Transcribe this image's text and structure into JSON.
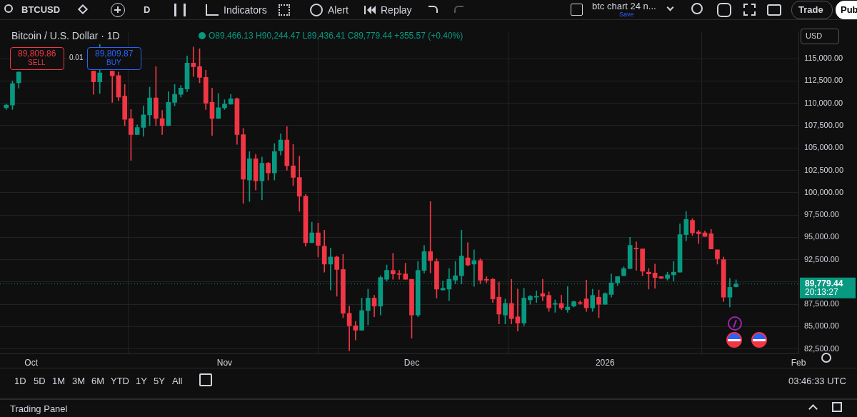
{
  "chart_data": {
    "type": "candlestick",
    "title": "Bitcoin / U.S. Dollar · 1D",
    "subtitle": "O89,466.13 H90,244.47 L89,436.41 C89,779.44 +355.57 (+0.40%)",
    "x": [
      "2025-09-27",
      "2025-09-28",
      "2025-09-29",
      "2025-10-11",
      "2025-10-12",
      "2025-10-14",
      "2025-10-15",
      "2025-10-16",
      "2025-10-17",
      "2025-10-18",
      "2025-10-19",
      "2025-10-20",
      "2025-10-21",
      "2025-10-22",
      "2025-10-23",
      "2025-10-24",
      "2025-10-25",
      "2025-10-26",
      "2025-10-27",
      "2025-10-28",
      "2025-10-29",
      "2025-10-30",
      "2025-10-31",
      "2025-11-01",
      "2025-11-02",
      "2025-11-03",
      "2025-11-04",
      "2025-11-05",
      "2025-11-06",
      "2025-11-07",
      "2025-11-08",
      "2025-11-09",
      "2025-11-10",
      "2025-11-11",
      "2025-11-12",
      "2025-11-13",
      "2025-11-14",
      "2025-11-15",
      "2025-11-16",
      "2025-11-17",
      "2025-11-18",
      "2025-11-19",
      "2025-11-20",
      "2025-11-21",
      "2025-11-22",
      "2025-11-23",
      "2025-11-24",
      "2025-11-25",
      "2025-11-26",
      "2025-11-27",
      "2025-11-28",
      "2025-11-29",
      "2025-11-30",
      "2025-12-01",
      "2025-12-02",
      "2025-12-03",
      "2025-12-04",
      "2025-12-05",
      "2025-12-06",
      "2025-12-07",
      "2025-12-08",
      "2025-12-09",
      "2025-12-10",
      "2025-12-11",
      "2025-12-12",
      "2025-12-13",
      "2025-12-14",
      "2025-12-15",
      "2025-12-16",
      "2025-12-17",
      "2025-12-18",
      "2025-12-19",
      "2025-12-20",
      "2025-12-21",
      "2025-12-22",
      "2025-12-23",
      "2025-12-24",
      "2025-12-25",
      "2025-12-26",
      "2025-12-27",
      "2025-12-28",
      "2025-12-29",
      "2025-12-30",
      "2025-12-31",
      "2026-01-01",
      "2026-01-02",
      "2026-01-03",
      "2026-01-04",
      "2026-01-05",
      "2026-01-06",
      "2026-01-07",
      "2026-01-08",
      "2026-01-09",
      "2026-01-10",
      "2026-01-11",
      "2026-01-12",
      "2026-01-13",
      "2026-01-14",
      "2026-01-15",
      "2026-01-16",
      "2026-01-17",
      "2026-01-18",
      "2026-01-19",
      "2026-01-20",
      "2026-01-21",
      "2026-01-22"
    ],
    "ohlc": [
      [
        109500,
        109900,
        109300,
        109800
      ],
      [
        109800,
        112500,
        109300,
        112200
      ],
      [
        112300,
        113500,
        111700,
        113500
      ],
      [
        113600,
        113600,
        111000,
        112400
      ],
      [
        112400,
        116600,
        111100,
        113400
      ],
      [
        113600,
        113600,
        110100,
        113100
      ],
      [
        113100,
        113500,
        110300,
        110700
      ],
      [
        110800,
        112100,
        107500,
        108200
      ],
      [
        108300,
        109300,
        103600,
        106500
      ],
      [
        106500,
        107600,
        106500,
        107300
      ],
      [
        107300,
        109700,
        106300,
        108700
      ],
      [
        108700,
        111800,
        107500,
        110600
      ],
      [
        110600,
        114100,
        107500,
        108300
      ],
      [
        108300,
        109200,
        106500,
        107500
      ],
      [
        107500,
        111300,
        107500,
        110100
      ],
      [
        110100,
        112100,
        109700,
        111000
      ],
      [
        111000,
        112000,
        110700,
        111700
      ],
      [
        111600,
        115300,
        111300,
        114500
      ],
      [
        114500,
        116300,
        113000,
        114100
      ],
      [
        114100,
        116100,
        112300,
        112900
      ],
      [
        112900,
        113700,
        109300,
        110000
      ],
      [
        110100,
        111700,
        106400,
        108300
      ],
      [
        108300,
        111100,
        108300,
        109500
      ],
      [
        109500,
        110400,
        109300,
        109900
      ],
      [
        109900,
        111000,
        109900,
        110500
      ],
      [
        110500,
        110600,
        105400,
        106500
      ],
      [
        106500,
        107200,
        98800,
        101500
      ],
      [
        101400,
        104600,
        99000,
        103800
      ],
      [
        103800,
        104300,
        100300,
        101300
      ],
      [
        101300,
        104000,
        99200,
        103300
      ],
      [
        103300,
        103400,
        101400,
        102200
      ],
      [
        102200,
        105500,
        101400,
        104600
      ],
      [
        104700,
        106600,
        104200,
        105900
      ],
      [
        105900,
        107400,
        102500,
        103000
      ],
      [
        103000,
        105400,
        100800,
        101700
      ],
      [
        101700,
        104100,
        97900,
        99600
      ],
      [
        99600,
        99800,
        94000,
        94400
      ],
      [
        94400,
        96700,
        94400,
        95500
      ],
      [
        95500,
        96600,
        92800,
        94100
      ],
      [
        94000,
        95800,
        91100,
        92000
      ],
      [
        92000,
        93800,
        89100,
        92800
      ],
      [
        92800,
        92900,
        88400,
        91400
      ],
      [
        91400,
        93100,
        86000,
        86500
      ],
      [
        86500,
        87300,
        82300,
        85100
      ],
      [
        85100,
        85600,
        83500,
        84600
      ],
      [
        84600,
        88200,
        84600,
        86800
      ],
      [
        86800,
        89200,
        85200,
        88200
      ],
      [
        88200,
        88500,
        86100,
        87300
      ],
      [
        87300,
        90700,
        86300,
        90500
      ],
      [
        90300,
        91900,
        90100,
        91300
      ],
      [
        91300,
        93200,
        90300,
        90900
      ],
      [
        90900,
        91300,
        90300,
        90850
      ],
      [
        90900,
        92100,
        90300,
        90300
      ],
      [
        90300,
        90300,
        83700,
        86300
      ],
      [
        86300,
        92300,
        86100,
        91300
      ],
      [
        91300,
        94100,
        91000,
        93400
      ],
      [
        93400,
        99000,
        91000,
        92400
      ],
      [
        92300,
        92600,
        88200,
        89200
      ],
      [
        89100,
        90100,
        89100,
        89300
      ],
      [
        89200,
        91500,
        87900,
        90300
      ],
      [
        90200,
        92300,
        89800,
        90700
      ],
      [
        90700,
        95800,
        89800,
        92900
      ],
      [
        92700,
        94400,
        91800,
        91900
      ],
      [
        92000,
        93600,
        89500,
        92400
      ],
      [
        92400,
        92600,
        89800,
        90200
      ],
      [
        90300,
        90600,
        89900,
        90200
      ],
      [
        90300,
        90400,
        87700,
        88100
      ],
      [
        88300,
        90000,
        85300,
        86400
      ],
      [
        86300,
        88100,
        85300,
        87600
      ],
      [
        87600,
        90300,
        85300,
        85900
      ],
      [
        86100,
        89200,
        84500,
        85400
      ],
      [
        85400,
        89300,
        85100,
        88200
      ],
      [
        88000,
        88500,
        87500,
        88400
      ],
      [
        88300,
        89000,
        87700,
        88400
      ],
      [
        88700,
        90300,
        87900,
        88400
      ],
      [
        88500,
        88900,
        86700,
        87100
      ],
      [
        87500,
        88000,
        86600,
        87600
      ],
      [
        87600,
        88500,
        86900,
        87100
      ],
      [
        86900,
        89500,
        86600,
        87200
      ],
      [
        87300,
        87900,
        87200,
        87800
      ],
      [
        87700,
        87900,
        87500,
        87600
      ],
      [
        88100,
        90200,
        86700,
        87100
      ],
      [
        87100,
        89200,
        86700,
        88500
      ],
      [
        88300,
        89100,
        86000,
        87500
      ],
      [
        87500,
        88800,
        87500,
        88700
      ],
      [
        88600,
        90900,
        88300,
        89900
      ],
      [
        89900,
        90600,
        89600,
        90600
      ],
      [
        90700,
        91700,
        90700,
        91500
      ],
      [
        91500,
        95000,
        91500,
        94100
      ],
      [
        93800,
        94500,
        91300,
        93700
      ],
      [
        93700,
        93700,
        90700,
        91200
      ],
      [
        91100,
        91500,
        89200,
        90900
      ],
      [
        91000,
        92000,
        89300,
        90500
      ],
      [
        90600,
        90600,
        90400,
        90400
      ],
      [
        90400,
        91100,
        90200,
        90800
      ],
      [
        90800,
        92300,
        90100,
        91100
      ],
      [
        91100,
        96500,
        91100,
        95300
      ],
      [
        95300,
        97900,
        94600,
        97000
      ],
      [
        96900,
        97100,
        95200,
        95500
      ],
      [
        95600,
        95800,
        94300,
        95400
      ],
      [
        95500,
        95700,
        95100,
        95100
      ],
      [
        95400,
        95900,
        93700,
        93700
      ],
      [
        93600,
        93600,
        92000,
        92600
      ],
      [
        92500,
        92800,
        87800,
        88300
      ],
      [
        88300,
        90400,
        87200,
        89400
      ],
      [
        89466.13,
        90244.47,
        89436.41,
        89779.44
      ]
    ],
    "colors": [
      "#089981",
      "#089981",
      "#089981",
      "#f23645",
      "#089981",
      "#f23645",
      "#f23645",
      "#f23645",
      "#f23645",
      "#089981",
      "#089981",
      "#089981",
      "#f23645",
      "#f23645",
      "#089981",
      "#089981",
      "#089981",
      "#089981",
      "#f23645",
      "#f23645",
      "#f23645",
      "#f23645",
      "#089981",
      "#089981",
      "#089981",
      "#f23645",
      "#f23645",
      "#089981",
      "#f23645",
      "#089981",
      "#f23645",
      "#089981",
      "#089981",
      "#f23645",
      "#f23645",
      "#f23645",
      "#f23645",
      "#089981",
      "#f23645",
      "#f23645",
      "#089981",
      "#f23645",
      "#f23645",
      "#f23645",
      "#f23645",
      "#089981",
      "#089981",
      "#f23645",
      "#089981",
      "#089981",
      "#f23645",
      "#f23645",
      "#f23645",
      "#f23645",
      "#089981",
      "#089981",
      "#f23645",
      "#f23645",
      "#089981",
      "#089981",
      "#089981",
      "#089981",
      "#f23645",
      "#089981",
      "#f23645",
      "#f23645",
      "#f23645",
      "#f23645",
      "#089981",
      "#f23645",
      "#f23645",
      "#089981",
      "#089981",
      "#089981",
      "#f23645",
      "#f23645",
      "#089981",
      "#f23645",
      "#089981",
      "#089981",
      "#f23645",
      "#f23645",
      "#089981",
      "#f23645",
      "#089981",
      "#089981",
      "#089981",
      "#089981",
      "#089981",
      "#f23645",
      "#f23645",
      "#f23645",
      "#f23645",
      "#f23645",
      "#089981",
      "#089981",
      "#089981",
      "#089981",
      "#f23645",
      "#f23645",
      "#f23645",
      "#f23645",
      "#f23645",
      "#f23645",
      "#089981",
      "#089981"
    ],
    "xlim": [
      "2025-09-26",
      "2026-02-01"
    ],
    "xticks": [
      {
        "value": "2025-10-01",
        "label": "Oct"
      },
      {
        "value": "2025-11-01",
        "label": "Nov"
      },
      {
        "value": "2025-12-01",
        "label": "Dec"
      },
      {
        "value": "2026-01-01",
        "label": "2026"
      },
      {
        "value": "2026-02-01",
        "label": "Feb"
      }
    ],
    "ylim": [
      82000,
      118000
    ],
    "yticks": [
      {
        "value": 82500,
        "label": "82,500.00"
      },
      {
        "value": 85000,
        "label": "85,000.00"
      },
      {
        "value": 87500,
        "label": "87,500.00"
      },
      {
        "value": 90000,
        "label": null
      },
      {
        "value": 92500,
        "label": "92,500.00"
      },
      {
        "value": 95000,
        "label": "95,000.00"
      },
      {
        "value": 97500,
        "label": "97,500.00"
      },
      {
        "value": 100000,
        "label": "100,000.00"
      },
      {
        "value": 102500,
        "label": "102,500.00"
      },
      {
        "value": 105000,
        "label": "105,000.00"
      },
      {
        "value": 107500,
        "label": "107,500.00"
      },
      {
        "value": 110000,
        "label": "110,000.00"
      },
      {
        "value": 112500,
        "label": "112,500.00"
      },
      {
        "value": 115000,
        "label": "115,000.00"
      }
    ],
    "grid": true,
    "ref_lines": [
      {
        "axis": "y",
        "value": 89779.44,
        "label": "89,779.44",
        "color": "#089981",
        "line_style": "dotted"
      }
    ],
    "annotations": [
      "BTCUSD",
      "D",
      "Indicators",
      "Alert",
      "Replay",
      "btc chart 24 n...",
      "Save",
      "Trade",
      "Pub",
      "USD",
      "89,809.86",
      "SELL",
      "0.01",
      "89,809.87",
      "BUY",
      "20:13:27",
      "1D",
      "5D",
      "1M",
      "3M",
      "6M",
      "YTD",
      "1Y",
      "5Y",
      "All",
      "03:46:33 UTC",
      "Trading Panel"
    ]
  }
}
